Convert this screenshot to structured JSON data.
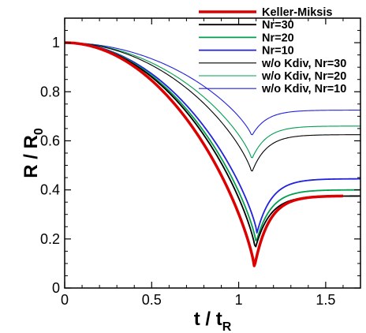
{
  "chart_data": {
    "type": "line",
    "xlabel": {
      "main": "t / t",
      "sub": "R"
    },
    "ylabel": {
      "main": "R / R",
      "sub": "0"
    },
    "xlim": [
      0,
      1.7
    ],
    "ylim": [
      0,
      1.1
    ],
    "xticks": [
      0,
      0.5,
      1,
      1.5
    ],
    "xtick_labels": [
      "0",
      "0.5",
      "1",
      "1.5"
    ],
    "yticks": [
      0,
      0.2,
      0.4,
      0.6,
      0.8,
      1
    ],
    "ytick_labels": [
      "0",
      "0.2",
      "0.4",
      "0.6",
      "0.8",
      "1"
    ],
    "grid": false,
    "legend_position": "top-right",
    "series": [
      {
        "name": "Keller-Miksis",
        "color": "#dd0000",
        "width": 3.5,
        "tmin": 1.09,
        "rmin": 0.085,
        "r_end": 0.375,
        "t_end": 1.6
      },
      {
        "name": "Nr=30",
        "color": "#000000",
        "width": 1.8,
        "tmin": 1.095,
        "rmin": 0.16,
        "r_end": 0.375,
        "t_end": 1.7
      },
      {
        "name": "Nr=20",
        "color": "#009f50",
        "width": 1.8,
        "tmin": 1.1,
        "rmin": 0.185,
        "r_end": 0.4,
        "t_end": 1.7
      },
      {
        "name": "Nr=10",
        "color": "#2222dd",
        "width": 1.8,
        "tmin": 1.105,
        "rmin": 0.225,
        "r_end": 0.445,
        "t_end": 1.7
      },
      {
        "name": "w/o Kdiv, Nr=30",
        "color": "#000000",
        "width": 1.1,
        "tmin": 1.075,
        "rmin": 0.47,
        "r_end": 0.625,
        "t_end": 1.7
      },
      {
        "name": "w/o Kdiv, Nr=20",
        "color": "#009f50",
        "width": 1.1,
        "tmin": 1.075,
        "rmin": 0.525,
        "r_end": 0.66,
        "t_end": 1.7
      },
      {
        "name": "w/o Kdiv, Nr=10",
        "color": "#2222dd",
        "width": 1.1,
        "tmin": 1.075,
        "rmin": 0.62,
        "r_end": 0.725,
        "t_end": 1.7
      }
    ]
  }
}
